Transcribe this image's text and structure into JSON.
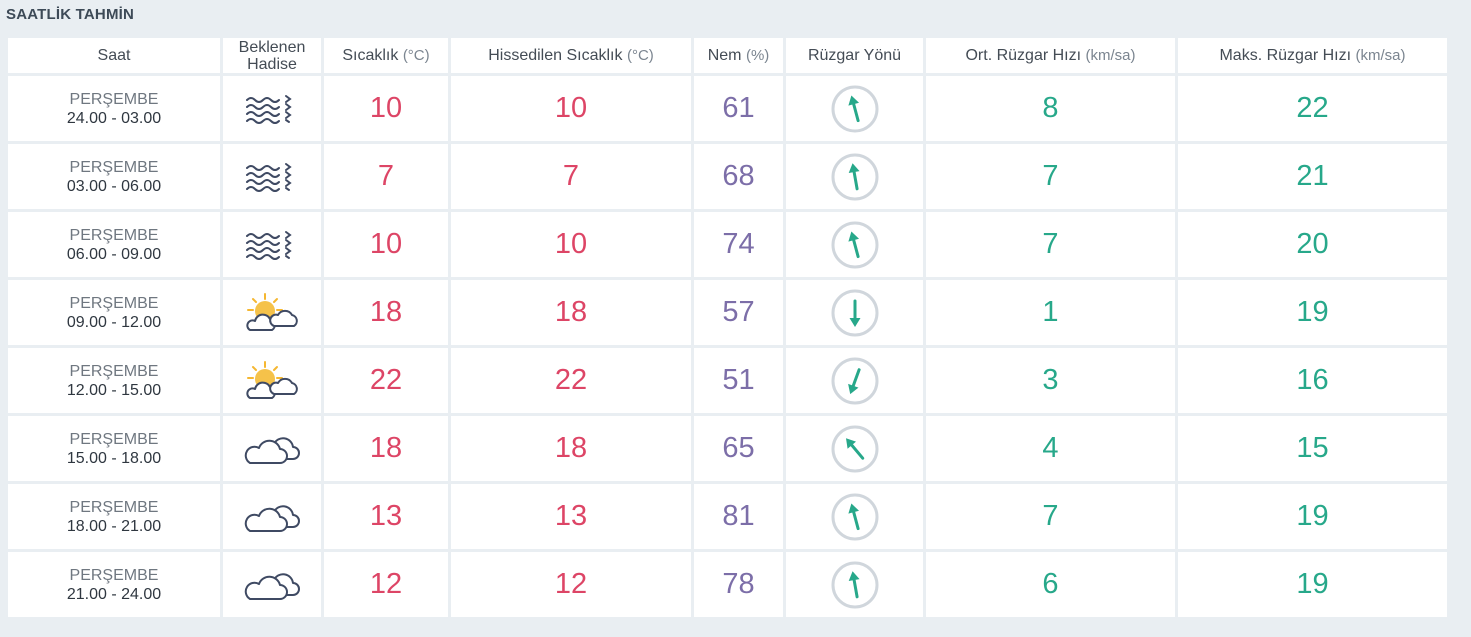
{
  "title": "SAATLİK TAHMİN",
  "colors": {
    "temperature": "#dd4566",
    "humidity": "#7c6ea8",
    "wind": "#27a88a",
    "background": "#e9eef2"
  },
  "columns": {
    "time": "Saat",
    "event_line1": "Beklenen",
    "event_line2": "Hadise",
    "temp_label": "Sıcaklık",
    "temp_unit": "(°C)",
    "feels_label": "Hissedilen Sıcaklık",
    "feels_unit": "(°C)",
    "hum_label": "Nem",
    "hum_unit": "(%)",
    "wind_dir": "Rüzgar Yönü",
    "avg_label": "Ort. Rüzgar Hızı",
    "avg_unit": "(km/sa)",
    "max_label": "Maks. Rüzgar Hızı",
    "max_unit": "(km/sa)"
  },
  "rows": [
    {
      "day": "PERŞEMBE",
      "hours": "24.00 - 03.00",
      "icon": "fog-icon",
      "temp": "10",
      "feels": "10",
      "humidity": "61",
      "wind_dir_deg": 345,
      "avg_wind": "8",
      "max_wind": "22"
    },
    {
      "day": "PERŞEMBE",
      "hours": "03.00 - 06.00",
      "icon": "fog-icon",
      "temp": "7",
      "feels": "7",
      "humidity": "68",
      "wind_dir_deg": 350,
      "avg_wind": "7",
      "max_wind": "21"
    },
    {
      "day": "PERŞEMBE",
      "hours": "06.00 - 09.00",
      "icon": "fog-icon",
      "temp": "10",
      "feels": "10",
      "humidity": "74",
      "wind_dir_deg": 345,
      "avg_wind": "7",
      "max_wind": "20"
    },
    {
      "day": "PERŞEMBE",
      "hours": "09.00 - 12.00",
      "icon": "partly-cloudy-icon",
      "temp": "18",
      "feels": "18",
      "humidity": "57",
      "wind_dir_deg": 180,
      "avg_wind": "1",
      "max_wind": "19"
    },
    {
      "day": "PERŞEMBE",
      "hours": "12.00 - 15.00",
      "icon": "partly-cloudy-icon",
      "temp": "22",
      "feels": "22",
      "humidity": "51",
      "wind_dir_deg": 200,
      "avg_wind": "3",
      "max_wind": "16"
    },
    {
      "day": "PERŞEMBE",
      "hours": "15.00 - 18.00",
      "icon": "cloudy-icon",
      "temp": "18",
      "feels": "18",
      "humidity": "65",
      "wind_dir_deg": 320,
      "avg_wind": "4",
      "max_wind": "15"
    },
    {
      "day": "PERŞEMBE",
      "hours": "18.00 - 21.00",
      "icon": "cloudy-icon",
      "temp": "13",
      "feels": "13",
      "humidity": "81",
      "wind_dir_deg": 345,
      "avg_wind": "7",
      "max_wind": "19"
    },
    {
      "day": "PERŞEMBE",
      "hours": "21.00 - 24.00",
      "icon": "cloudy-icon",
      "temp": "12",
      "feels": "12",
      "humidity": "78",
      "wind_dir_deg": 350,
      "avg_wind": "6",
      "max_wind": "19"
    }
  ]
}
